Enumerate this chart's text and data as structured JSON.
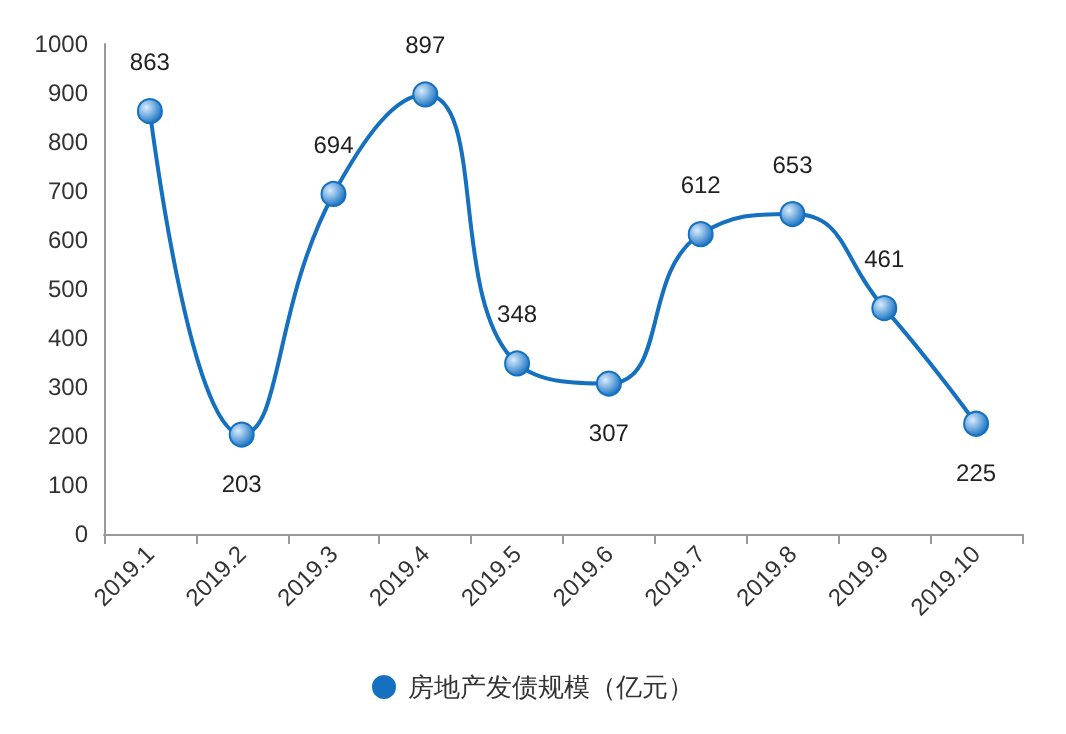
{
  "chart_data": {
    "type": "line",
    "categories": [
      "2019.1",
      "2019.2",
      "2019.3",
      "2019.4",
      "2019.5",
      "2019.6",
      "2019.7",
      "2019.8",
      "2019.9",
      "2019.10"
    ],
    "series": [
      {
        "name": "房地产发债规模（亿元）",
        "color": "#1570c0",
        "values": [
          863,
          203,
          694,
          897,
          348,
          307,
          612,
          653,
          461,
          225
        ]
      }
    ],
    "ylim": [
      0,
      1000
    ],
    "yticks": [
      0,
      100,
      200,
      300,
      400,
      500,
      600,
      700,
      800,
      900,
      1000
    ],
    "grid": false,
    "legend": "bottom",
    "marker": "circle",
    "line_style": "solid",
    "data_labels": true
  }
}
